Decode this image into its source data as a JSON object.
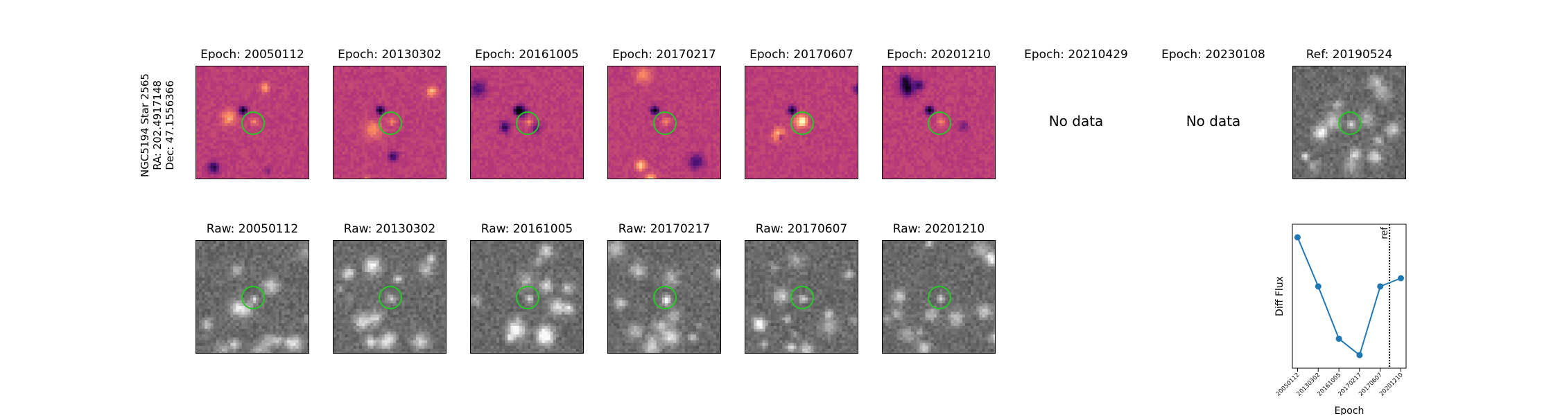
{
  "star_label": {
    "name": "NGC5194 Star 2565",
    "ra": "RA: 202.4917148",
    "dec": "Dec: 47.1556366"
  },
  "diff_panels": [
    {
      "title": "Epoch: 20050112",
      "has_data": true
    },
    {
      "title": "Epoch: 20130302",
      "has_data": true
    },
    {
      "title": "Epoch: 20161005",
      "has_data": true
    },
    {
      "title": "Epoch: 20170217",
      "has_data": true
    },
    {
      "title": "Epoch: 20170607",
      "has_data": true
    },
    {
      "title": "Epoch: 20201210",
      "has_data": true
    },
    {
      "title": "Epoch: 20210429",
      "has_data": false
    },
    {
      "title": "Epoch: 20230108",
      "has_data": false
    }
  ],
  "no_data_text": "No data",
  "ref_panel": {
    "title": "Ref: 20190524"
  },
  "raw_panels": [
    {
      "title": "Raw: 20050112"
    },
    {
      "title": "Raw: 20130302"
    },
    {
      "title": "Raw: 20161005"
    },
    {
      "title": "Raw: 20170217"
    },
    {
      "title": "Raw: 20170607"
    },
    {
      "title": "Raw: 20201210"
    }
  ],
  "colors": {
    "circle": "#22cc22",
    "series": "#1f77b4"
  },
  "chart_data": {
    "type": "line",
    "categories": [
      "20050112",
      "20130302",
      "20161005",
      "20170217",
      "20170607",
      "20201210"
    ],
    "values": [
      0.92,
      0.62,
      0.3,
      0.2,
      0.62,
      0.67
    ],
    "xlabel": "Epoch",
    "ylabel": "Diff Flux",
    "ref_line_label": "ref",
    "ref_line_position": 4.45,
    "yticks_shown": false,
    "grid": false
  }
}
